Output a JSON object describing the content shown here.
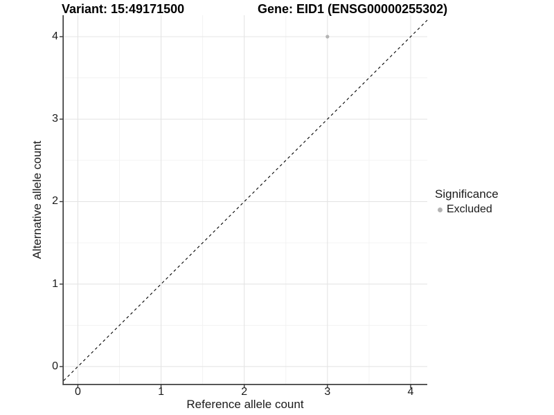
{
  "titles": {
    "left": "Variant: 15:49171500",
    "right": "Gene: EID1 (ENSG00000255302)"
  },
  "axes": {
    "x": {
      "label": "Reference allele count",
      "ticks": [
        "0",
        "1",
        "2",
        "3",
        "4"
      ]
    },
    "y": {
      "label": "Alternative allele count",
      "ticks": [
        "0",
        "1",
        "2",
        "3",
        "4"
      ]
    }
  },
  "legend": {
    "title": "Significance",
    "items": [
      {
        "label": "Excluded",
        "color": "#b3b3b3"
      }
    ]
  },
  "colors": {
    "axis_line": "#333333",
    "tick_mark": "#333333",
    "grid_major": "#e4e4e4",
    "grid_minor": "#f1f1f1",
    "reference_line": "#000000",
    "point": "#b3b3b3",
    "background": "#ffffff"
  },
  "chart_data": {
    "type": "scatter",
    "title": "Variant: 15:49171500 | Gene: EID1 (ENSG00000255302)",
    "xlabel": "Reference allele count",
    "ylabel": "Alternative allele count",
    "xlim": [
      -0.17,
      4.2
    ],
    "ylim": [
      -0.21,
      4.26
    ],
    "x_major_ticks": [
      0,
      1,
      2,
      3,
      4
    ],
    "y_major_ticks": [
      0,
      1,
      2,
      3,
      4
    ],
    "x_minor_ticks": [
      0.5,
      1.5,
      2.5,
      3.5
    ],
    "y_minor_ticks": [
      0.5,
      1.5,
      2.5,
      3.5
    ],
    "grid": true,
    "legend_position": "right",
    "series": [
      {
        "name": "Excluded",
        "color": "#b3b3b3",
        "points": [
          {
            "x": 3,
            "y": 4
          }
        ]
      }
    ],
    "reference_line": {
      "type": "identity",
      "slope": 1,
      "intercept": 0,
      "style": "dashed",
      "color": "#000000"
    }
  }
}
